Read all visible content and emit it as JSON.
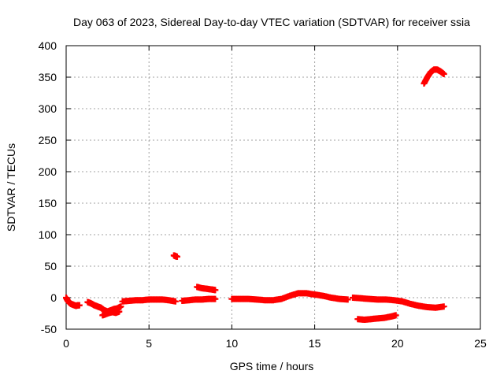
{
  "chart_data": {
    "type": "scatter",
    "title": "Day 063 of 2023, Sidereal Day-to-day VTEC variation (SDTVAR) for receiver ssia",
    "xlabel": "GPS time / hours",
    "ylabel": "SDTVAR / TECUs",
    "xlim": [
      0,
      25
    ],
    "ylim": [
      -50,
      400
    ],
    "xticks": [
      "0",
      "5",
      "10",
      "15",
      "20",
      "25"
    ],
    "yticks": [
      "-50",
      "0",
      "50",
      "100",
      "150",
      "200",
      "250",
      "300",
      "350",
      "400"
    ],
    "grid": true,
    "marker": "plus",
    "color": "#ff0000",
    "series": [
      {
        "name": "seg-a",
        "x": [
          0.0,
          0.1,
          0.2,
          0.3,
          0.4,
          0.5,
          0.6,
          0.7,
          0.8
        ],
        "y": [
          0,
          -5,
          -8,
          -10,
          -11,
          -12,
          -13,
          -12,
          -12
        ]
      },
      {
        "name": "seg-b",
        "x": [
          1.3,
          1.5,
          1.7,
          1.9,
          2.1,
          2.3,
          2.5,
          2.7,
          2.9,
          3.1,
          3.3
        ],
        "y": [
          -7,
          -9,
          -12,
          -14,
          -16,
          -20,
          -22,
          -20,
          -18,
          -17,
          -14
        ]
      },
      {
        "name": "seg-b-low",
        "x": [
          2.2,
          2.4,
          2.6,
          2.8,
          3.0,
          3.2
        ],
        "y": [
          -28,
          -26,
          -24,
          -23,
          -24,
          -22
        ]
      },
      {
        "name": "seg-c",
        "x": [
          3.4,
          3.8,
          4.2,
          4.6,
          5.0,
          5.4,
          5.8,
          6.2,
          6.6
        ],
        "y": [
          -6,
          -5,
          -4,
          -4,
          -3,
          -3,
          -3,
          -4,
          -6
        ]
      },
      {
        "name": "seg-c-outlier",
        "x": [
          6.5,
          6.6,
          6.7
        ],
        "y": [
          67,
          66,
          65
        ]
      },
      {
        "name": "seg-d",
        "x": [
          7.0,
          7.4,
          7.8,
          8.2,
          8.6,
          9.0
        ],
        "y": [
          -5,
          -4,
          -3,
          -3,
          -2,
          -2
        ]
      },
      {
        "name": "seg-d-upper",
        "x": [
          7.9,
          8.2,
          8.5,
          8.8,
          9.0
        ],
        "y": [
          17,
          15,
          14,
          13,
          12
        ]
      },
      {
        "name": "seg-e",
        "x": [
          10.0,
          10.5,
          11.0,
          11.5,
          12.0,
          12.5,
          13.0,
          13.5,
          14.0,
          14.5,
          15.0,
          15.5,
          16.0,
          16.5,
          17.0
        ],
        "y": [
          -2,
          -2,
          -2,
          -3,
          -4,
          -4,
          -2,
          3,
          7,
          7,
          5,
          3,
          0,
          -2,
          -3
        ]
      },
      {
        "name": "seg-f",
        "x": [
          17.3,
          17.8,
          18.3,
          18.8,
          19.3,
          19.8,
          20.3,
          20.8,
          21.3,
          21.8,
          22.3,
          22.8
        ],
        "y": [
          0,
          -1,
          -2,
          -3,
          -3,
          -4,
          -6,
          -10,
          -13,
          -15,
          -16,
          -14
        ]
      },
      {
        "name": "seg-f-lower",
        "x": [
          17.6,
          18.0,
          18.4,
          18.8,
          19.2,
          19.6,
          19.9
        ],
        "y": [
          -34,
          -35,
          -34,
          -33,
          -32,
          -30,
          -28
        ]
      },
      {
        "name": "seg-g",
        "x": [
          21.6,
          21.8,
          22.0,
          22.2,
          22.4,
          22.6,
          22.8
        ],
        "y": [
          340,
          350,
          358,
          362,
          362,
          359,
          355
        ]
      }
    ]
  }
}
